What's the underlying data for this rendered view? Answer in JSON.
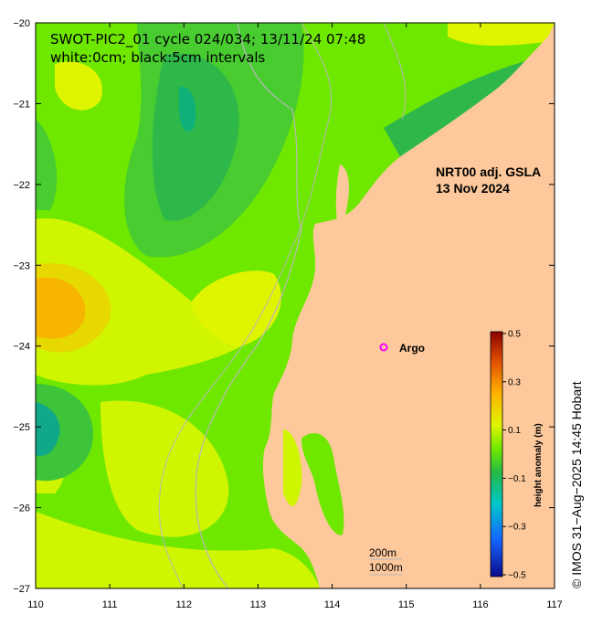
{
  "header": {
    "line1": "SWOT-PIC2_01 cycle 024/034; 13/11/24 07:48",
    "line2": "white:0cm; black:5cm intervals"
  },
  "product": {
    "line1": "NRT00 adj. GSLA",
    "line2": "13 Nov 2024"
  },
  "argo": {
    "label": "Argo",
    "symbol": "o"
  },
  "axes": {
    "x_ticks": [
      "110",
      "111",
      "112",
      "113",
      "114",
      "115",
      "116",
      "117"
    ],
    "y_ticks": [
      "−20",
      "−21",
      "−22",
      "−23",
      "−24",
      "−25",
      "−26",
      "−27"
    ]
  },
  "colorbar": {
    "title": "height anomaly (m)",
    "ticks": [
      "0.5",
      "0.3",
      "0.1",
      "−0.1",
      "−0.3",
      "−0.5"
    ],
    "range": [
      -0.5,
      0.5
    ]
  },
  "scale": {
    "line1": "200m",
    "line2": "1000m"
  },
  "credit": "©  IMOS 31−Aug−2025 14:45 Hobart",
  "colors": {
    "land": "#fdc89b",
    "sla_low": "#22b84a",
    "sla_mid": "#6fe800",
    "sla_high": "#cff500",
    "sla_peak": "#f7b500",
    "argo_marker": "#ff00ff",
    "bathymetry": "#b8b8b8"
  }
}
